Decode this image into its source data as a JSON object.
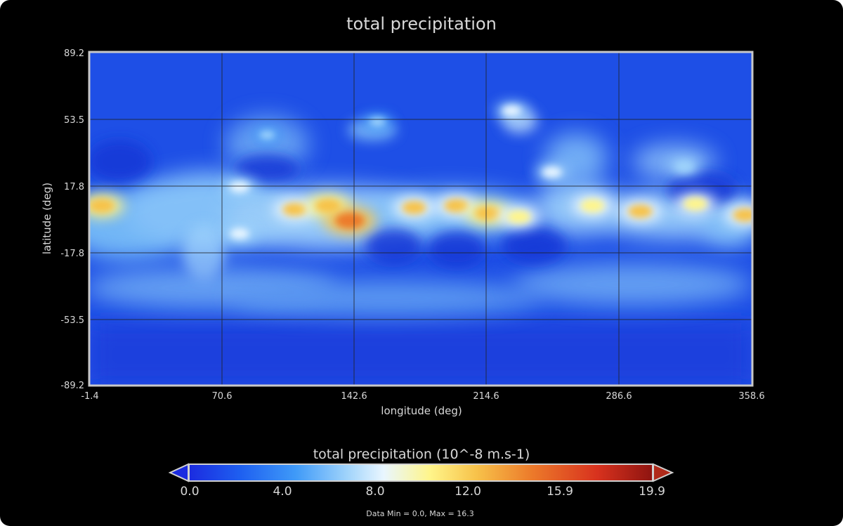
{
  "chart_data": {
    "type": "heatmap",
    "title": "total precipitation",
    "xlabel": "longitude (deg)",
    "ylabel": "latitude (deg)",
    "xlim": [
      -1.4,
      358.6
    ],
    "ylim": [
      -89.2,
      89.2
    ],
    "x_ticks": [
      "-1.4",
      "70.6",
      "142.6",
      "214.6",
      "286.6",
      "358.6"
    ],
    "y_ticks": [
      "89.2",
      "53.5",
      "17.8",
      "-17.8",
      "-53.5",
      "-89.2"
    ],
    "grid": true,
    "colorbar": {
      "title": "total precipitation (10^-8 m.s-1)",
      "ticks": [
        "0.0",
        "4.0",
        "8.0",
        "12.0",
        "15.9",
        "19.9"
      ],
      "range": [
        0.0,
        19.9
      ],
      "colormap": [
        "#1b2be0",
        "#1e5ff0",
        "#3f9af8",
        "#9fd3fb",
        "#e9f6ff",
        "#fff58a",
        "#f7c24a",
        "#ec7a2a",
        "#d8321e",
        "#8e1410"
      ]
    },
    "stats": "Data Min = 0.0, Max = 16.3",
    "data_min": 0.0,
    "data_max": 16.3,
    "features": [
      {
        "lon": 5,
        "lat": 7,
        "value": 13.5
      },
      {
        "lon": 80,
        "lat": 17,
        "value": 8.8
      },
      {
        "lon": 80,
        "lat": -8,
        "value": 8.5
      },
      {
        "lon": 110,
        "lat": 5,
        "value": 12.5
      },
      {
        "lon": 128,
        "lat": 7,
        "value": 13.5
      },
      {
        "lon": 140,
        "lat": -1,
        "value": 16.3
      },
      {
        "lon": 175,
        "lat": 6,
        "value": 12.5
      },
      {
        "lon": 198,
        "lat": 7,
        "value": 13.0
      },
      {
        "lon": 215,
        "lat": 3,
        "value": 13.5
      },
      {
        "lon": 232,
        "lat": 1,
        "value": 12.0
      },
      {
        "lon": 272,
        "lat": 7,
        "value": 12.0
      },
      {
        "lon": 298,
        "lat": 4,
        "value": 12.5
      },
      {
        "lon": 328,
        "lat": 8,
        "value": 12.0
      },
      {
        "lon": 355,
        "lat": 2,
        "value": 12.5
      },
      {
        "lon": 250,
        "lat": 25,
        "value": 8.5
      },
      {
        "lon": 322,
        "lat": 28,
        "value": 7.5
      },
      {
        "lon": 228,
        "lat": 58,
        "value": 8.0
      },
      {
        "lon": 95,
        "lat": 45,
        "value": 6.0
      },
      {
        "lon": 155,
        "lat": 52,
        "value": 6.5
      }
    ]
  }
}
